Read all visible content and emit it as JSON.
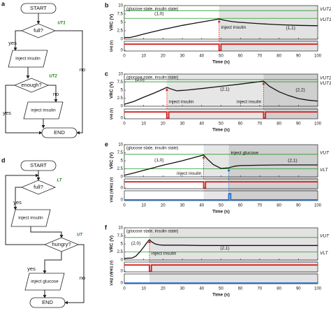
{
  "flowcharts": [
    {
      "panel": "a",
      "texts": [
        "START",
        "full?",
        "UT1",
        "yes",
        "inject insulin",
        "UT2",
        "enough?",
        "no",
        "inject insulin",
        "yes",
        "no",
        "END"
      ]
    },
    {
      "panel": "d",
      "texts": [
        "START",
        "full?",
        "LT",
        "yes",
        "inject insulin",
        "hungry?",
        "UT",
        "yes",
        "inject glucose",
        "no",
        "END"
      ]
    }
  ],
  "chart_data": [
    {
      "type": "line",
      "panel": "b",
      "header": "(glucose state, insulin state)",
      "xlabel": "Time (s)",
      "ylabel": "VRC (V)",
      "xlim": [
        0,
        100
      ],
      "xticks": [
        0,
        10,
        20,
        30,
        40,
        50,
        60,
        70,
        80,
        90,
        100
      ],
      "ylim": [
        0,
        10
      ],
      "yticks": [
        0,
        2.5,
        5,
        7.5,
        10
      ],
      "thresholds": [
        {
          "name": "VUT2",
          "value": 8.5
        },
        {
          "name": "VUT1",
          "value": 6.2
        }
      ],
      "threshold_color": "#2a9a2a",
      "shading": [
        {
          "from": 49,
          "to": 100,
          "color": "#e2e2e2"
        }
      ],
      "states": [
        "(1,0)",
        "(1,1)"
      ],
      "series": [
        {
          "color": "#111111",
          "x": [
            0,
            3,
            6,
            10,
            15,
            20,
            25,
            30,
            35,
            40,
            45,
            49,
            52,
            56,
            60,
            70,
            80,
            90,
            100
          ],
          "values": [
            0.5,
            0.5,
            0.9,
            1.5,
            2.2,
            2.9,
            3.5,
            4.1,
            4.6,
            5.1,
            5.6,
            6.0,
            5.6,
            5.2,
            5.0,
            4.6,
            4.3,
            4.1,
            4.0
          ]
        }
      ],
      "pulses": [
        {
          "ylabel": "VHI (V)",
          "ylim": [
            0,
            5
          ],
          "yticks": [
            0
          ],
          "color": "#d62020",
          "x": [
            0,
            49,
            49,
            50,
            50,
            100
          ],
          "values": [
            4,
            4,
            0,
            0,
            4,
            4
          ],
          "annotations": [
            "inject insulin"
          ]
        }
      ]
    },
    {
      "type": "line",
      "panel": "c",
      "header": "(glucose state, insulin state)",
      "xlabel": "Time (s)",
      "ylabel": "VRC (V)",
      "xlim": [
        0,
        100
      ],
      "xticks": [
        0,
        10,
        20,
        30,
        40,
        50,
        60,
        70,
        80,
        90,
        100
      ],
      "ylim": [
        0,
        10
      ],
      "yticks": [
        0,
        2.5,
        5,
        7.5,
        10
      ],
      "thresholds": [
        {
          "name": "VUT2",
          "value": 8.3
        },
        {
          "name": "VUT1",
          "value": 7.6
        }
      ],
      "threshold_color": "#2a9a2a",
      "shading": [
        {
          "from": 22,
          "to": 72,
          "color": "#e6e6e6"
        },
        {
          "from": 72,
          "to": 100,
          "color": "#cfcfcf"
        }
      ],
      "states": [
        "(2,0)",
        "(2,1)",
        "(2,2)"
      ],
      "series": [
        {
          "color": "#111111",
          "x": [
            0,
            5,
            10,
            15,
            20,
            22,
            24,
            27,
            32,
            40,
            50,
            60,
            68,
            72,
            75,
            80,
            85,
            90,
            95,
            100
          ],
          "values": [
            0.6,
            1.5,
            2.8,
            4.0,
            5.3,
            5.9,
            5.4,
            4.8,
            5.0,
            5.5,
            6.2,
            6.9,
            7.5,
            7.8,
            6.2,
            4.5,
            3.3,
            2.4,
            1.9,
            1.6
          ]
        }
      ],
      "pulses": [
        {
          "ylabel": "VHI (V)",
          "ylim": [
            0,
            5
          ],
          "yticks": [
            0
          ],
          "color": "#d62020",
          "x": [
            0,
            22,
            22,
            23,
            23,
            72,
            72,
            73,
            73,
            100
          ],
          "values": [
            4,
            4,
            0,
            0,
            4,
            4,
            0,
            0,
            4,
            4
          ],
          "annotations": [
            "inject insulin",
            "inject insulin"
          ]
        }
      ]
    },
    {
      "type": "line",
      "panel": "e",
      "header": "(glucose state, insulin state)",
      "xlabel": "Time (s)",
      "ylabel": "VRC (V)",
      "xlim": [
        0,
        100
      ],
      "xticks": [
        0,
        10,
        20,
        30,
        40,
        50,
        60,
        70,
        80,
        90,
        100
      ],
      "ylim": [
        0,
        10
      ],
      "yticks": [
        0,
        2.5,
        5,
        7.5,
        10
      ],
      "thresholds": [
        {
          "name": "VUT",
          "value": 7.0
        },
        {
          "name": "VLT",
          "value": 2.5
        }
      ],
      "threshold_color": "#2a9a2a",
      "shading": [
        {
          "from": 41,
          "to": 54,
          "color": "#e6e6e6"
        },
        {
          "from": 54,
          "to": 100,
          "color": "#cfcfcf"
        }
      ],
      "states": [
        "(1,0)",
        "(2,1)"
      ],
      "series": [
        {
          "color": "#111111",
          "x": [
            0,
            5,
            10,
            15,
            20,
            25,
            30,
            35,
            41,
            43,
            46,
            50,
            54,
            57,
            60,
            70,
            80,
            90,
            100
          ],
          "values": [
            0.5,
            1.2,
            2.0,
            2.8,
            3.6,
            4.3,
            5.0,
            5.8,
            6.8,
            5.5,
            3.8,
            2.6,
            2.8,
            3.3,
            3.5,
            3.6,
            3.7,
            3.7,
            3.7
          ]
        }
      ],
      "pulses": [
        {
          "ylabel": "VHI1 (V)",
          "ylim": [
            0,
            5
          ],
          "yticks": [
            0
          ],
          "color": "#d62020",
          "x": [
            0,
            41,
            41,
            42,
            42,
            100
          ],
          "values": [
            4,
            4,
            0,
            0,
            4,
            4
          ],
          "annotations": [
            "inject insulin"
          ]
        },
        {
          "ylabel": "VHI2 (V)",
          "ylim": [
            0,
            5
          ],
          "yticks": [
            0
          ],
          "color": "#1f6fd0",
          "x": [
            0,
            54,
            54,
            55,
            55,
            100
          ],
          "values": [
            0,
            0,
            4,
            4,
            0,
            0
          ],
          "annotations": [
            "inject glucose"
          ]
        }
      ]
    },
    {
      "type": "line",
      "panel": "f",
      "header": "(glucose state, insulin state)",
      "xlabel": "Time (s)",
      "ylabel": "VRC (V)",
      "xlim": [
        0,
        100
      ],
      "xticks": [
        0,
        10,
        20,
        30,
        40,
        50,
        60,
        70,
        80,
        90,
        100
      ],
      "ylim": [
        0,
        10
      ],
      "yticks": [
        0,
        2.5,
        5,
        7.5,
        10
      ],
      "thresholds": [
        {
          "name": "VUT",
          "value": 7.0
        },
        {
          "name": "VLT",
          "value": 2.5
        }
      ],
      "threshold_color": "#2a9a2a",
      "shading": [
        {
          "from": 13,
          "to": 100,
          "color": "#e2e2e2"
        }
      ],
      "states": [
        "(2,0)",
        "(2,1)"
      ],
      "series": [
        {
          "color": "#111111",
          "x": [
            0,
            4,
            6,
            8,
            10,
            12,
            13,
            14,
            16,
            18,
            20,
            30,
            40,
            60,
            80,
            100
          ],
          "values": [
            0.5,
            0.6,
            1.2,
            2.5,
            4.0,
            5.6,
            6.3,
            5.7,
            5.0,
            4.7,
            4.6,
            4.6,
            4.5,
            4.5,
            4.5,
            4.5
          ]
        }
      ],
      "pulses": [
        {
          "ylabel": "VHI1 (V)",
          "ylim": [
            0,
            5
          ],
          "yticks": [
            0
          ],
          "color": "#d62020",
          "x": [
            0,
            13,
            13,
            14,
            14,
            100
          ],
          "values": [
            4,
            4,
            0,
            0,
            4,
            4
          ],
          "annotations": [
            "inject insulin"
          ]
        },
        {
          "ylabel": "VHI2 (V)",
          "ylim": [
            0,
            5
          ],
          "yticks": [
            0
          ],
          "color": "#1f6fd0",
          "x": [
            0,
            100
          ],
          "values": [
            0,
            0
          ],
          "annotations": []
        }
      ]
    }
  ]
}
